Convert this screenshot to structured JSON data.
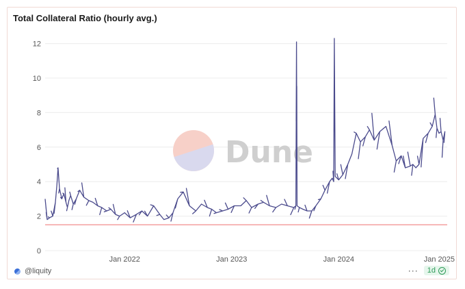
{
  "header": {
    "title": "Total Collateral Ratio (hourly avg.)"
  },
  "footer": {
    "author": "@liquity",
    "refresh_label": "1d",
    "more_glyph": "···"
  },
  "watermark": {
    "text": "Dune"
  },
  "colors": {
    "series": "#4a4a8c",
    "threshold": "#f08080",
    "grid": "#ececec"
  },
  "chart_data": {
    "type": "line",
    "title": "Total Collateral Ratio (hourly avg.)",
    "xlabel": "",
    "ylabel": "",
    "xlim": [
      "2021-04-05",
      "2025-01-05"
    ],
    "ylim": [
      0,
      12.5
    ],
    "yticks": [
      0,
      2,
      4,
      6,
      8,
      10,
      12
    ],
    "xticks": [
      {
        "date": "2022-01-01",
        "label": "Jan 2022"
      },
      {
        "date": "2023-01-01",
        "label": "Jan 2023"
      },
      {
        "date": "2024-01-01",
        "label": "Jan 2024"
      },
      {
        "date": "2025-01-01",
        "label": "Jan 2025"
      }
    ],
    "grid": true,
    "threshold": {
      "y": 1.5
    },
    "series": [
      {
        "x": [
          "2021-04-05",
          "2021-04-12",
          "2021-04-20",
          "2021-05-01",
          "2021-05-10",
          "2021-05-15",
          "2021-05-19",
          "2021-05-24",
          "2021-06-01",
          "2021-06-08",
          "2021-06-15",
          "2021-06-20",
          "2021-06-25",
          "2021-07-01",
          "2021-07-10",
          "2021-07-20",
          "2021-08-01",
          "2021-08-15",
          "2021-09-01",
          "2021-09-15",
          "2021-10-01",
          "2021-10-15",
          "2021-11-01",
          "2021-11-15",
          "2021-12-01",
          "2021-12-15",
          "2022-01-01",
          "2022-01-20",
          "2022-02-10",
          "2022-03-01",
          "2022-03-20",
          "2022-04-10",
          "2022-05-01",
          "2022-05-15",
          "2022-06-01",
          "2022-06-15",
          "2022-07-01",
          "2022-07-20",
          "2022-08-10",
          "2022-09-01",
          "2022-09-20",
          "2022-10-10",
          "2022-10-25",
          "2022-11-10",
          "2022-12-01",
          "2022-12-20",
          "2023-01-10",
          "2023-02-01",
          "2023-02-20",
          "2023-03-10",
          "2023-04-01",
          "2023-04-20",
          "2023-05-10",
          "2023-06-01",
          "2023-06-20",
          "2023-07-10",
          "2023-08-01",
          "2023-08-08",
          "2023-08-10",
          "2023-08-12",
          "2023-08-20",
          "2023-09-01",
          "2023-09-15",
          "2023-10-01",
          "2023-10-15",
          "2023-11-01",
          "2023-11-15",
          "2023-12-01",
          "2023-12-10",
          "2023-12-15",
          "2023-12-17",
          "2023-12-20",
          "2024-01-01",
          "2024-01-15",
          "2024-02-01",
          "2024-02-15",
          "2024-03-01",
          "2024-03-15",
          "2024-04-01",
          "2024-04-15",
          "2024-05-01",
          "2024-05-20",
          "2024-06-10",
          "2024-07-01",
          "2024-07-15",
          "2024-08-01",
          "2024-08-15",
          "2024-09-01",
          "2024-09-10",
          "2024-09-20",
          "2024-10-01",
          "2024-10-15",
          "2024-11-01",
          "2024-11-15",
          "2024-11-25",
          "2024-12-01",
          "2024-12-08",
          "2024-12-15",
          "2024-12-22",
          "2024-12-28"
        ],
        "values": [
          3.0,
          1.8,
          1.9,
          2.0,
          2.8,
          3.8,
          4.8,
          3.6,
          3.0,
          3.3,
          2.8,
          2.5,
          2.9,
          3.2,
          2.7,
          3.0,
          3.5,
          3.1,
          2.9,
          2.8,
          2.6,
          2.5,
          2.3,
          2.4,
          2.1,
          2.0,
          2.2,
          1.9,
          2.1,
          2.3,
          2.0,
          2.6,
          2.1,
          1.8,
          1.9,
          2.2,
          3.0,
          3.4,
          2.6,
          2.3,
          2.7,
          2.5,
          2.4,
          2.2,
          2.3,
          2.4,
          2.6,
          2.6,
          2.9,
          2.5,
          2.7,
          2.8,
          2.6,
          2.5,
          2.7,
          2.6,
          2.5,
          2.6,
          12.1,
          2.6,
          2.5,
          2.4,
          2.3,
          2.3,
          2.6,
          3.0,
          3.5,
          4.0,
          4.2,
          4.0,
          12.3,
          4.3,
          4.1,
          4.4,
          5.0,
          5.6,
          6.8,
          6.3,
          6.6,
          7.0,
          6.4,
          6.9,
          7.2,
          6.1,
          5.2,
          5.5,
          4.8,
          4.9,
          5.0,
          4.8,
          5.0,
          6.5,
          6.8,
          7.2,
          7.9,
          7.1,
          6.8,
          6.9,
          6.4,
          6.9
        ]
      }
    ]
  }
}
